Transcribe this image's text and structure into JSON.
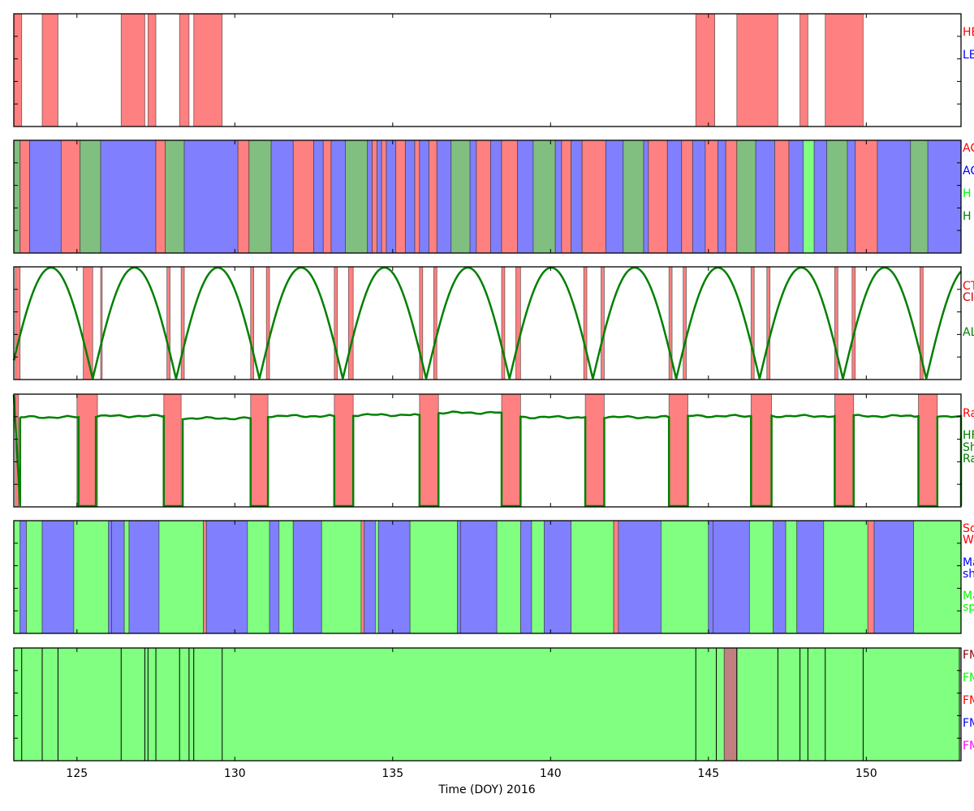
{
  "chart_data": {
    "type": "timeline",
    "xlabel": "Time (DOY) 2016",
    "xlim": [
      123,
      153
    ],
    "xticks": [
      125,
      130,
      135,
      140,
      145,
      150
    ],
    "panels": [
      {
        "legend": [
          {
            "label": "HE",
            "color": "#ff0000"
          },
          {
            "label": "LE",
            "color": "#0000ff"
          }
        ],
        "bands": [
          [
            123.0,
            123.25,
            "#ff8080"
          ],
          [
            123.9,
            124.4,
            "#ff8080"
          ],
          [
            126.4,
            127.15,
            "#ff8080"
          ],
          [
            127.25,
            127.5,
            "#ff8080"
          ],
          [
            128.25,
            128.55,
            "#ff8080"
          ],
          [
            128.7,
            129.6,
            "#ff8080"
          ],
          [
            144.6,
            145.2,
            "#ff8080"
          ],
          [
            145.9,
            147.2,
            "#ff8080"
          ],
          [
            147.9,
            148.15,
            "#ff8080"
          ],
          [
            148.7,
            149.9,
            "#ff8080"
          ]
        ]
      },
      {
        "legend": [
          {
            "label": "AC",
            "color": "#ff0000"
          },
          {
            "label": "AC",
            "color": "#0000ff"
          },
          {
            "label": "H",
            "color": "#00ff00"
          },
          {
            "label": "H",
            "color": "#008000"
          }
        ],
        "bands": [
          [
            123.0,
            123.2,
            "#80bf80"
          ],
          [
            123.2,
            123.5,
            "#ff8080"
          ],
          [
            123.5,
            124.5,
            "#8080ff"
          ],
          [
            124.5,
            125.1,
            "#ff8080"
          ],
          [
            125.1,
            125.75,
            "#80bf80"
          ],
          [
            125.75,
            127.5,
            "#8080ff"
          ],
          [
            127.5,
            127.8,
            "#ff8080"
          ],
          [
            127.8,
            128.4,
            "#80bf80"
          ],
          [
            128.4,
            130.1,
            "#8080ff"
          ],
          [
            130.1,
            130.45,
            "#ff8080"
          ],
          [
            130.45,
            131.15,
            "#80bf80"
          ],
          [
            131.15,
            131.85,
            "#8080ff"
          ],
          [
            131.85,
            132.5,
            "#ff8080"
          ],
          [
            132.5,
            132.8,
            "#8080ff"
          ],
          [
            132.8,
            133.05,
            "#ff8080"
          ],
          [
            133.05,
            133.5,
            "#8080ff"
          ],
          [
            133.5,
            134.2,
            "#80bf80"
          ],
          [
            134.2,
            134.35,
            "#8080ff"
          ],
          [
            134.35,
            134.5,
            "#ff8080"
          ],
          [
            134.5,
            134.65,
            "#8080ff"
          ],
          [
            134.65,
            134.8,
            "#ff8080"
          ],
          [
            134.8,
            135.1,
            "#8080ff"
          ],
          [
            135.1,
            135.4,
            "#ff8080"
          ],
          [
            135.4,
            135.7,
            "#8080ff"
          ],
          [
            135.7,
            135.85,
            "#ff8080"
          ],
          [
            135.85,
            136.15,
            "#8080ff"
          ],
          [
            136.15,
            136.4,
            "#ff8080"
          ],
          [
            136.4,
            136.85,
            "#8080ff"
          ],
          [
            136.85,
            137.45,
            "#80bf80"
          ],
          [
            137.45,
            137.65,
            "#8080ff"
          ],
          [
            137.65,
            138.1,
            "#ff8080"
          ],
          [
            138.1,
            138.45,
            "#8080ff"
          ],
          [
            138.45,
            138.95,
            "#ff8080"
          ],
          [
            138.95,
            139.45,
            "#8080ff"
          ],
          [
            139.45,
            140.15,
            "#80bf80"
          ],
          [
            140.15,
            140.35,
            "#8080ff"
          ],
          [
            140.35,
            140.65,
            "#ff8080"
          ],
          [
            140.65,
            141.0,
            "#8080ff"
          ],
          [
            141.0,
            141.75,
            "#ff8080"
          ],
          [
            141.75,
            142.3,
            "#8080ff"
          ],
          [
            142.3,
            142.95,
            "#80bf80"
          ],
          [
            142.95,
            143.1,
            "#8080ff"
          ],
          [
            143.1,
            143.7,
            "#ff8080"
          ],
          [
            143.7,
            144.15,
            "#8080ff"
          ],
          [
            144.15,
            144.5,
            "#ff8080"
          ],
          [
            144.5,
            144.9,
            "#8080ff"
          ],
          [
            144.9,
            145.3,
            "#ff8080"
          ],
          [
            145.3,
            145.55,
            "#8080ff"
          ],
          [
            145.55,
            145.9,
            "#ff8080"
          ],
          [
            145.9,
            146.5,
            "#80bf80"
          ],
          [
            146.5,
            147.1,
            "#8080ff"
          ],
          [
            147.1,
            147.55,
            "#ff8080"
          ],
          [
            147.55,
            148.0,
            "#8080ff"
          ],
          [
            148.0,
            148.35,
            "#80ff80"
          ],
          [
            148.35,
            148.75,
            "#8080ff"
          ],
          [
            148.75,
            149.4,
            "#80bf80"
          ],
          [
            149.4,
            149.65,
            "#8080ff"
          ],
          [
            149.65,
            150.35,
            "#ff8080"
          ],
          [
            150.35,
            151.4,
            "#8080ff"
          ],
          [
            151.4,
            151.95,
            "#80bf80"
          ],
          [
            151.95,
            153.0,
            "#8080ff"
          ]
        ]
      },
      {
        "legend": [
          {
            "label": "CT",
            "color": "#ff0000"
          },
          {
            "label": "CI",
            "color": "#cc0000"
          },
          {
            "label": "AL",
            "color": "#008000"
          }
        ],
        "curve": {
          "color": "#008000",
          "period": 2.64,
          "zeros": [
            125.5,
            128.1,
            130.75,
            133.4,
            136.05,
            138.65,
            141.3,
            143.95,
            146.6,
            149.25,
            151.9
          ],
          "ylim": [
            0,
            1
          ]
        },
        "bands": [
          [
            123.05,
            123.2,
            "#ff8080"
          ],
          [
            125.2,
            125.5,
            "#ff8080"
          ],
          [
            125.75,
            125.8,
            "#ff8080"
          ],
          [
            127.85,
            127.95,
            "#ff8080"
          ],
          [
            128.3,
            128.4,
            "#ff8080"
          ],
          [
            130.5,
            130.6,
            "#ff8080"
          ],
          [
            131.0,
            131.1,
            "#ff8080"
          ],
          [
            133.15,
            133.25,
            "#ff8080"
          ],
          [
            133.6,
            133.75,
            "#ff8080"
          ],
          [
            135.85,
            135.95,
            "#ff8080"
          ],
          [
            136.3,
            136.4,
            "#ff8080"
          ],
          [
            138.45,
            138.55,
            "#ff8080"
          ],
          [
            138.9,
            139.05,
            "#ff8080"
          ],
          [
            141.05,
            141.15,
            "#ff8080"
          ],
          [
            141.6,
            141.7,
            "#ff8080"
          ],
          [
            143.75,
            143.85,
            "#ff8080"
          ],
          [
            144.2,
            144.3,
            "#ff8080"
          ],
          [
            146.35,
            146.45,
            "#ff8080"
          ],
          [
            146.85,
            146.95,
            "#ff8080"
          ],
          [
            149.0,
            149.1,
            "#ff8080"
          ],
          [
            149.55,
            149.65,
            "#ff8080"
          ],
          [
            151.7,
            151.8,
            "#ff8080"
          ]
        ]
      },
      {
        "legend": [
          {
            "label": "Ra",
            "color": "#ff0000"
          },
          {
            "label": "HF",
            "color": "#008000"
          },
          {
            "label": "Sh",
            "color": "#008000"
          },
          {
            "label": "Ra",
            "color": "#008000"
          }
        ],
        "line": {
          "color": "#008000",
          "ylim": [
            0,
            1
          ],
          "high": 0.8,
          "low": 0.0
        },
        "bands": [
          [
            123.05,
            123.15,
            "#ff8080"
          ],
          [
            125.0,
            125.65,
            "#ff8080"
          ],
          [
            127.75,
            128.3,
            "#ff8080"
          ],
          [
            130.5,
            131.05,
            "#ff8080"
          ],
          [
            133.15,
            133.75,
            "#ff8080"
          ],
          [
            135.85,
            136.45,
            "#ff8080"
          ],
          [
            138.45,
            139.05,
            "#ff8080"
          ],
          [
            141.1,
            141.7,
            "#ff8080"
          ],
          [
            143.75,
            144.35,
            "#ff8080"
          ],
          [
            146.35,
            147.0,
            "#ff8080"
          ],
          [
            149.0,
            149.6,
            "#ff8080"
          ],
          [
            151.65,
            152.25,
            "#ff8080"
          ]
        ],
        "segments_high": [
          [
            123.2,
            125.05,
            0.8
          ],
          [
            125.6,
            127.75,
            0.81
          ],
          [
            128.35,
            130.5,
            0.79
          ],
          [
            131.05,
            133.15,
            0.81
          ],
          [
            133.75,
            135.85,
            0.82
          ],
          [
            136.45,
            138.45,
            0.84
          ],
          [
            139.05,
            141.1,
            0.8
          ],
          [
            141.7,
            143.75,
            0.8
          ],
          [
            144.35,
            146.35,
            0.81
          ],
          [
            147.0,
            149.0,
            0.81
          ],
          [
            149.6,
            151.65,
            0.81
          ],
          [
            152.25,
            153.0,
            0.81
          ]
        ]
      },
      {
        "legend": [
          {
            "label": "Sc",
            "color": "#ff0000"
          },
          {
            "label": "W",
            "color": "#ff0000"
          },
          {
            "label": "Ma",
            "color": "#0000ff"
          },
          {
            "label": "sh",
            "color": "#0000ff"
          },
          {
            "label": "Ma",
            "color": "#00ff00"
          },
          {
            "label": "sp",
            "color": "#00ff00"
          }
        ],
        "bands": [
          [
            123.0,
            123.2,
            "#80ff80"
          ],
          [
            123.2,
            123.4,
            "#8080ff"
          ],
          [
            123.4,
            123.9,
            "#80ff80"
          ],
          [
            123.9,
            124.9,
            "#8080ff"
          ],
          [
            124.9,
            126.0,
            "#80ff80"
          ],
          [
            126.0,
            126.1,
            "#8080ff"
          ],
          [
            126.1,
            126.5,
            "#8080ff"
          ],
          [
            126.5,
            126.65,
            "#80ff80"
          ],
          [
            126.65,
            127.6,
            "#8080ff"
          ],
          [
            127.6,
            129.0,
            "#80ff80"
          ],
          [
            129.0,
            129.1,
            "#ff8080"
          ],
          [
            129.1,
            130.4,
            "#8080ff"
          ],
          [
            130.4,
            131.1,
            "#80ff80"
          ],
          [
            131.1,
            131.4,
            "#8080ff"
          ],
          [
            131.4,
            131.85,
            "#80ff80"
          ],
          [
            131.85,
            132.75,
            "#8080ff"
          ],
          [
            132.75,
            134.0,
            "#80ff80"
          ],
          [
            134.0,
            134.1,
            "#ff8080"
          ],
          [
            134.1,
            134.45,
            "#8080ff"
          ],
          [
            134.45,
            134.55,
            "#80ff80"
          ],
          [
            134.55,
            135.55,
            "#8080ff"
          ],
          [
            135.55,
            137.05,
            "#80ff80"
          ],
          [
            137.05,
            137.15,
            "#8080ff"
          ],
          [
            137.15,
            138.3,
            "#8080ff"
          ],
          [
            138.3,
            139.05,
            "#80ff80"
          ],
          [
            139.05,
            139.4,
            "#8080ff"
          ],
          [
            139.4,
            139.8,
            "#80ff80"
          ],
          [
            139.8,
            140.65,
            "#8080ff"
          ],
          [
            140.65,
            142.0,
            "#80ff80"
          ],
          [
            142.0,
            142.15,
            "#ff8080"
          ],
          [
            142.15,
            143.5,
            "#8080ff"
          ],
          [
            143.5,
            145.0,
            "#80ff80"
          ],
          [
            145.0,
            145.15,
            "#8080ff"
          ],
          [
            145.15,
            146.3,
            "#8080ff"
          ],
          [
            146.3,
            147.05,
            "#80ff80"
          ],
          [
            147.05,
            147.45,
            "#8080ff"
          ],
          [
            147.45,
            147.8,
            "#80ff80"
          ],
          [
            147.8,
            148.65,
            "#8080ff"
          ],
          [
            148.65,
            150.05,
            "#80ff80"
          ],
          [
            150.05,
            150.25,
            "#ff8080"
          ],
          [
            150.25,
            151.5,
            "#8080ff"
          ],
          [
            151.5,
            153.0,
            "#80ff80"
          ]
        ]
      },
      {
        "legend": [
          {
            "label": "FM",
            "color": "#800000"
          },
          {
            "label": "FM",
            "color": "#00ff00"
          },
          {
            "label": "FM",
            "color": "#ff0000"
          },
          {
            "label": "FM",
            "color": "#0000ff"
          },
          {
            "label": "FM",
            "color": "#ff00ff"
          }
        ],
        "bands": [
          [
            123.0,
            145.5,
            "#80ff80"
          ],
          [
            145.5,
            145.9,
            "#c08080"
          ],
          [
            145.9,
            152.95,
            "#80ff80"
          ]
        ],
        "dividers": [
          123.25,
          123.9,
          124.4,
          126.4,
          127.15,
          127.25,
          127.5,
          128.25,
          128.55,
          128.7,
          129.6,
          144.6,
          145.25,
          145.9,
          147.2,
          147.9,
          148.15,
          148.7,
          149.9,
          152.95
        ]
      }
    ]
  }
}
